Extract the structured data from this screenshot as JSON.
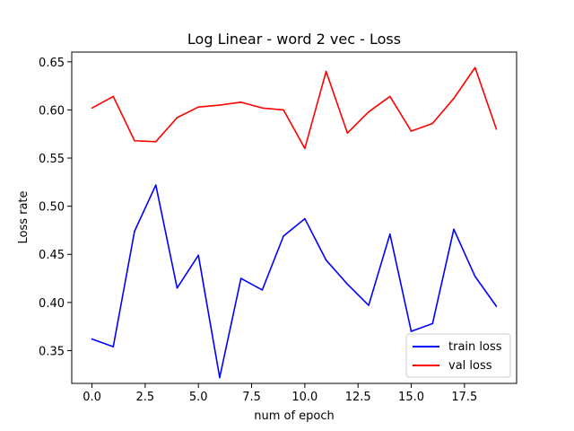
{
  "chart_data": {
    "type": "line",
    "title": "Log Linear - word 2 vec - Loss",
    "xlabel": "num of epoch",
    "ylabel": "Loss rate",
    "x": [
      0,
      1,
      2,
      3,
      4,
      5,
      6,
      7,
      8,
      9,
      10,
      11,
      12,
      13,
      14,
      15,
      16,
      17,
      18,
      19
    ],
    "series": [
      {
        "name": "train loss",
        "color": "#0000ff",
        "values": [
          0.362,
          0.354,
          0.474,
          0.522,
          0.415,
          0.449,
          0.322,
          0.425,
          0.413,
          0.469,
          0.487,
          0.444,
          0.419,
          0.397,
          0.471,
          0.37,
          0.378,
          0.476,
          0.427,
          0.396
        ]
      },
      {
        "name": "val loss",
        "color": "#ff0000",
        "values": [
          0.602,
          0.614,
          0.568,
          0.567,
          0.592,
          0.603,
          0.605,
          0.608,
          0.602,
          0.6,
          0.56,
          0.64,
          0.576,
          0.598,
          0.614,
          0.578,
          0.586,
          0.612,
          0.644,
          0.58
        ]
      }
    ],
    "xlim": [
      -0.95,
      19.95
    ],
    "ylim": [
      0.3159,
      0.6601
    ],
    "xticks": [
      "0.0",
      "2.5",
      "5.0",
      "7.5",
      "10.0",
      "12.5",
      "15.0",
      "17.5"
    ],
    "yticks": [
      "0.35",
      "0.40",
      "0.45",
      "0.50",
      "0.55",
      "0.60",
      "0.65"
    ],
    "grid": false,
    "legend_position": "lower-right"
  }
}
